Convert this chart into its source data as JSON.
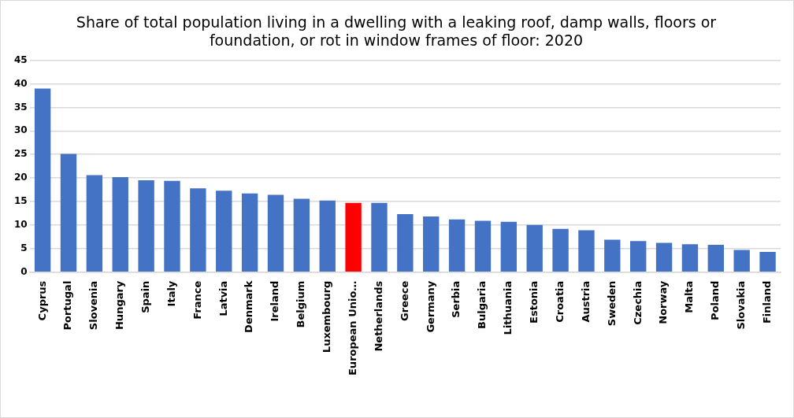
{
  "chart_data": {
    "type": "bar",
    "title": "Share of total population living in a dwelling with a leaking roof, damp walls, floors or foundation, or rot in window frames of floor: 2020",
    "categories": [
      "Cyprus",
      "Portugal",
      "Slovenia",
      "Hungary",
      "Spain",
      "Italy",
      "France",
      "Latvia",
      "Denmark",
      "Ireland",
      "Belgium",
      "Luxembourg",
      "European Unio…",
      "Netherlands",
      "Greece",
      "Germany",
      "Serbia",
      "Bulgaria",
      "Lithuania",
      "Estonia",
      "Croatia",
      "Austria",
      "Sweden",
      "Czechia",
      "Norway",
      "Malta",
      "Poland",
      "Slovakia",
      "Finland"
    ],
    "values": [
      39.0,
      25.1,
      20.6,
      20.2,
      19.5,
      19.4,
      17.8,
      17.3,
      16.7,
      16.4,
      15.6,
      15.2,
      14.7,
      14.7,
      12.3,
      11.8,
      11.2,
      10.9,
      10.7,
      10.0,
      9.2,
      8.9,
      6.9,
      6.6,
      6.2,
      5.9,
      5.8,
      4.7,
      4.3
    ],
    "colors": [
      "#4472c4",
      "#4472c4",
      "#4472c4",
      "#4472c4",
      "#4472c4",
      "#4472c4",
      "#4472c4",
      "#4472c4",
      "#4472c4",
      "#4472c4",
      "#4472c4",
      "#4472c4",
      "#ff0000",
      "#4472c4",
      "#4472c4",
      "#4472c4",
      "#4472c4",
      "#4472c4",
      "#4472c4",
      "#4472c4",
      "#4472c4",
      "#4472c4",
      "#4472c4",
      "#4472c4",
      "#4472c4",
      "#4472c4",
      "#4472c4",
      "#4472c4",
      "#4472c4"
    ],
    "ylim": [
      0,
      45
    ],
    "yticks": [
      0,
      5,
      10,
      15,
      20,
      25,
      30,
      35,
      40,
      45
    ],
    "grid": true
  }
}
